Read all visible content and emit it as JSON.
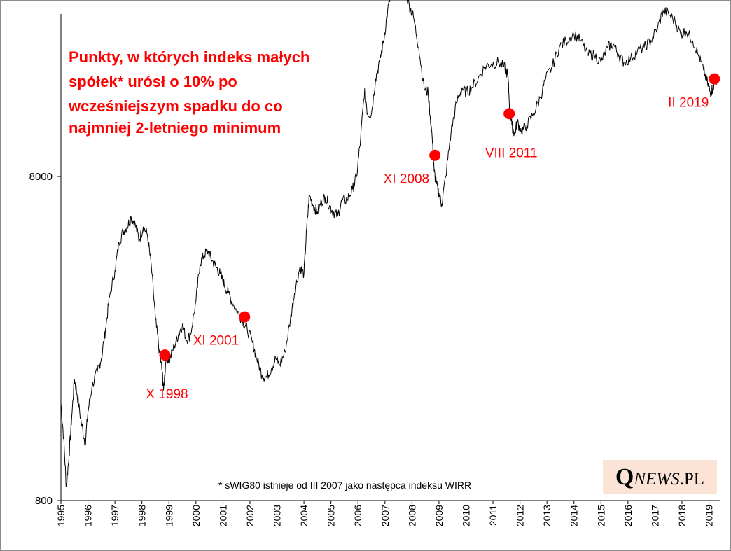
{
  "chart_data": {
    "type": "line",
    "title_lines": [
      "Punkty, w których indeks małych",
      "spółek* urósł o 10% po",
      "wcześniejszym spadku do co",
      "najmniej 2-letniego minimum"
    ],
    "y_scale": "log",
    "ylim": [
      800,
      80000
    ],
    "y_ticks": [
      "800",
      "8000"
    ],
    "xlim": [
      1995.0,
      2019.4
    ],
    "x_ticks": [
      "1995",
      "1996",
      "1997",
      "1998",
      "1999",
      "2000",
      "2001",
      "2002",
      "2003",
      "2004",
      "2005",
      "2006",
      "2007",
      "2008",
      "2009",
      "2010",
      "2011",
      "2012",
      "2013",
      "2014",
      "2015",
      "2016",
      "2017",
      "2018",
      "2019"
    ],
    "grid": false,
    "series": [
      {
        "points": [
          [
            1995.0,
            1600
          ],
          [
            1995.1,
            1250
          ],
          [
            1995.2,
            880
          ],
          [
            1995.3,
            1100
          ],
          [
            1995.4,
            1450
          ],
          [
            1995.5,
            1900
          ],
          [
            1995.6,
            1700
          ],
          [
            1995.75,
            1400
          ],
          [
            1995.9,
            1200
          ],
          [
            1996.0,
            1500
          ],
          [
            1996.15,
            1800
          ],
          [
            1996.35,
            2000
          ],
          [
            1996.5,
            2200
          ],
          [
            1996.65,
            2700
          ],
          [
            1996.8,
            3400
          ],
          [
            1997.0,
            4100
          ],
          [
            1997.15,
            5000
          ],
          [
            1997.3,
            5400
          ],
          [
            1997.45,
            5600
          ],
          [
            1997.6,
            6000
          ],
          [
            1997.75,
            5700
          ],
          [
            1997.9,
            5100
          ],
          [
            1998.05,
            5600
          ],
          [
            1998.2,
            5300
          ],
          [
            1998.35,
            4200
          ],
          [
            1998.5,
            2900
          ],
          [
            1998.65,
            2300
          ],
          [
            1998.75,
            2000
          ],
          [
            1998.8,
            1750
          ],
          [
            1998.9,
            2250
          ],
          [
            1999.0,
            2150
          ],
          [
            1999.2,
            2400
          ],
          [
            1999.35,
            2600
          ],
          [
            1999.5,
            2800
          ],
          [
            1999.65,
            2500
          ],
          [
            1999.8,
            2600
          ],
          [
            2000.0,
            3300
          ],
          [
            2000.15,
            4300
          ],
          [
            2000.3,
            4600
          ],
          [
            2000.45,
            4700
          ],
          [
            2000.6,
            4400
          ],
          [
            2000.75,
            4200
          ],
          [
            2000.9,
            4000
          ],
          [
            2001.05,
            3700
          ],
          [
            2001.2,
            3500
          ],
          [
            2001.4,
            3200
          ],
          [
            2001.6,
            3000
          ],
          [
            2001.75,
            2850
          ],
          [
            2001.9,
            2700
          ],
          [
            2002.1,
            2450
          ],
          [
            2002.25,
            2200
          ],
          [
            2002.45,
            1950
          ],
          [
            2002.6,
            1920
          ],
          [
            2002.8,
            2050
          ],
          [
            2002.95,
            2200
          ],
          [
            2003.1,
            2100
          ],
          [
            2003.3,
            2300
          ],
          [
            2003.5,
            2900
          ],
          [
            2003.65,
            3500
          ],
          [
            2003.85,
            4200
          ],
          [
            2004.0,
            4000
          ],
          [
            2004.1,
            5500
          ],
          [
            2004.2,
            7000
          ],
          [
            2004.35,
            6500
          ],
          [
            2004.5,
            6200
          ],
          [
            2004.65,
            6700
          ],
          [
            2004.8,
            6900
          ],
          [
            2004.95,
            6500
          ],
          [
            2005.1,
            6200
          ],
          [
            2005.25,
            6050
          ],
          [
            2005.4,
            6700
          ],
          [
            2005.6,
            6800
          ],
          [
            2005.8,
            7300
          ],
          [
            2005.95,
            8000
          ],
          [
            2006.1,
            10500
          ],
          [
            2006.25,
            15000
          ],
          [
            2006.35,
            12500
          ],
          [
            2006.5,
            12500
          ],
          [
            2006.65,
            16000
          ],
          [
            2006.8,
            18000
          ],
          [
            2006.95,
            21000
          ],
          [
            2007.1,
            26000
          ],
          [
            2007.25,
            30000
          ],
          [
            2007.4,
            34000
          ],
          [
            2007.5,
            38500
          ],
          [
            2007.6,
            32000
          ],
          [
            2007.75,
            30000
          ],
          [
            2007.9,
            27000
          ],
          [
            2008.05,
            25000
          ],
          [
            2008.25,
            20000
          ],
          [
            2008.45,
            15000
          ],
          [
            2008.6,
            14500
          ],
          [
            2008.75,
            10500
          ],
          [
            2008.82,
            8300
          ],
          [
            2008.9,
            7600
          ],
          [
            2009.0,
            7100
          ],
          [
            2009.1,
            6550
          ],
          [
            2009.25,
            8000
          ],
          [
            2009.45,
            11000
          ],
          [
            2009.65,
            13500
          ],
          [
            2009.85,
            15000
          ],
          [
            2010.0,
            14500
          ],
          [
            2010.2,
            15000
          ],
          [
            2010.45,
            16000
          ],
          [
            2010.7,
            17500
          ],
          [
            2010.95,
            17800
          ],
          [
            2011.2,
            18000
          ],
          [
            2011.4,
            17500
          ],
          [
            2011.55,
            16500
          ],
          [
            2011.62,
            13000
          ],
          [
            2011.7,
            11500
          ],
          [
            2011.8,
            10800
          ],
          [
            2011.9,
            11800
          ],
          [
            2012.05,
            11000
          ],
          [
            2012.25,
            11500
          ],
          [
            2012.5,
            12500
          ],
          [
            2012.75,
            14000
          ],
          [
            2012.95,
            16000
          ],
          [
            2013.2,
            17500
          ],
          [
            2013.45,
            20000
          ],
          [
            2013.7,
            21000
          ],
          [
            2014.0,
            22000
          ],
          [
            2014.25,
            21000
          ],
          [
            2014.5,
            19000
          ],
          [
            2014.75,
            19000
          ],
          [
            2015.0,
            18000
          ],
          [
            2015.25,
            20000
          ],
          [
            2015.45,
            20500
          ],
          [
            2015.65,
            19000
          ],
          [
            2015.85,
            18000
          ],
          [
            2016.1,
            18500
          ],
          [
            2016.35,
            19500
          ],
          [
            2016.6,
            20000
          ],
          [
            2016.85,
            21000
          ],
          [
            2017.1,
            23000
          ],
          [
            2017.3,
            26000
          ],
          [
            2017.5,
            25500
          ],
          [
            2017.75,
            24000
          ],
          [
            2017.95,
            22000
          ],
          [
            2018.15,
            22500
          ],
          [
            2018.4,
            21000
          ],
          [
            2018.6,
            19000
          ],
          [
            2018.8,
            17000
          ],
          [
            2018.95,
            15500
          ],
          [
            2019.05,
            14500
          ],
          [
            2019.15,
            15000
          ],
          [
            2019.3,
            16000
          ]
        ]
      }
    ],
    "markers": [
      {
        "x": 1998.85,
        "y": 2250,
        "label": "X 1998",
        "label_pos": "below"
      },
      {
        "x": 2001.8,
        "y": 2950,
        "label": "XI 2001",
        "label_pos": "below-left"
      },
      {
        "x": 2008.85,
        "y": 9300,
        "label": "XI 2008",
        "label_pos": "below-left"
      },
      {
        "x": 2011.6,
        "y": 12500,
        "label": "VIII 2011",
        "label_pos": "below"
      },
      {
        "x": 2019.2,
        "y": 16000,
        "label": "II 2019",
        "label_pos": "below-left"
      }
    ],
    "line_color": "#000000",
    "marker_color": "#ff0000",
    "annotation_color": "#ff0000",
    "footnote": "* sWIG80 istnieje od III 2007 jako następca indeksu WIRR"
  },
  "logo": {
    "q": "Q",
    "news": "NEWS",
    "pl": ".PL",
    "background": "#fbe4d5"
  }
}
